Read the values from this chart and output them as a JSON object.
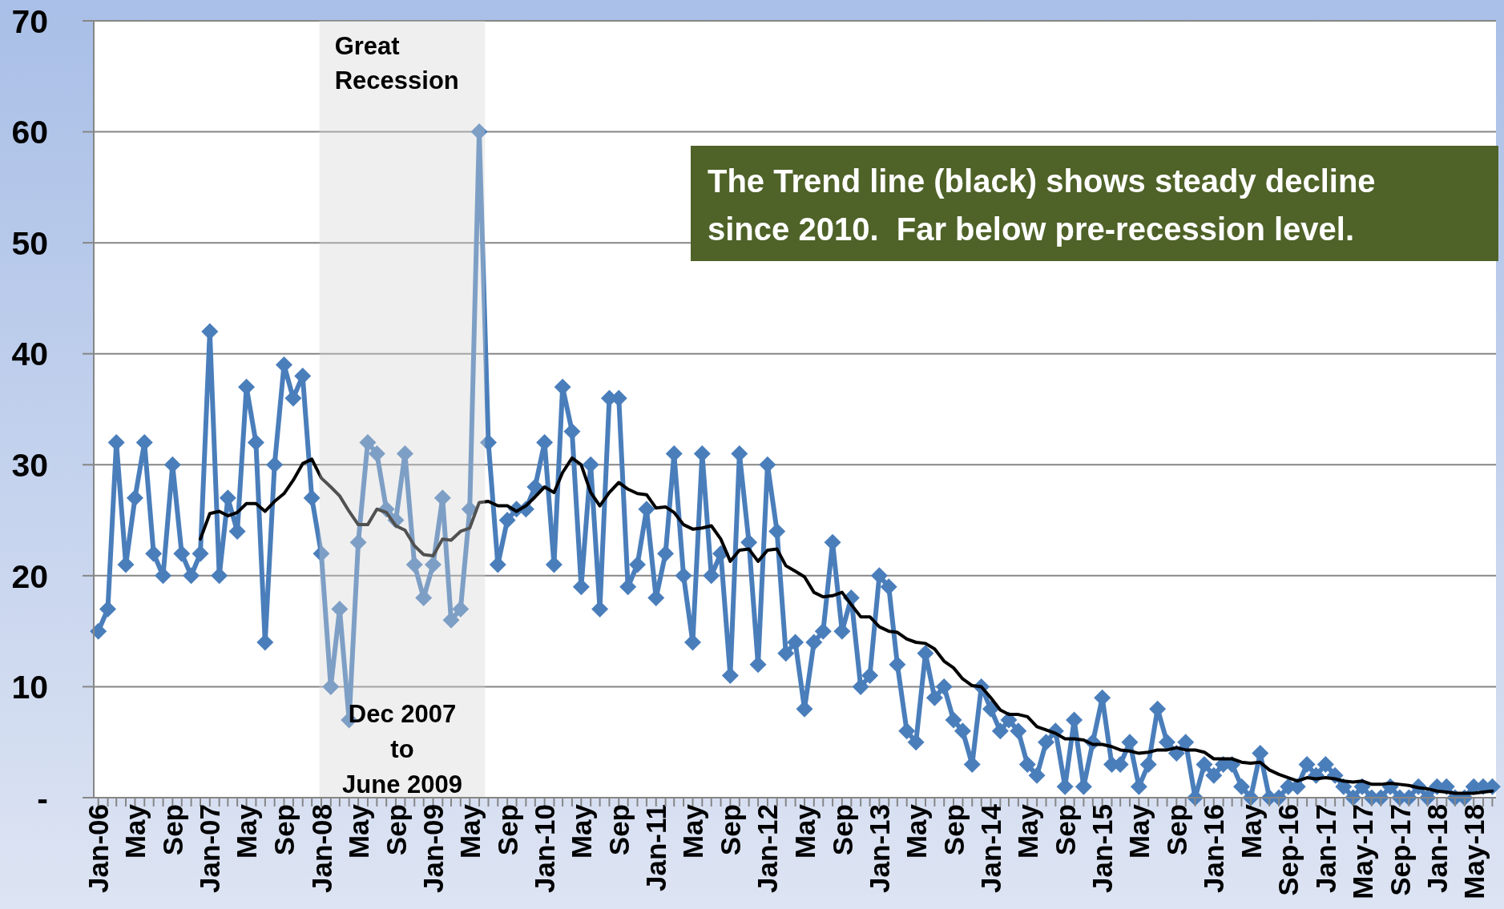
{
  "chart_data": {
    "type": "line",
    "x": [
      "2006-01",
      "2006-02",
      "2006-03",
      "2006-04",
      "2006-05",
      "2006-06",
      "2006-07",
      "2006-08",
      "2006-09",
      "2006-10",
      "2006-11",
      "2006-12",
      "2007-01",
      "2007-02",
      "2007-03",
      "2007-04",
      "2007-05",
      "2007-06",
      "2007-07",
      "2007-08",
      "2007-09",
      "2007-10",
      "2007-11",
      "2007-12",
      "2008-01",
      "2008-02",
      "2008-03",
      "2008-04",
      "2008-05",
      "2008-06",
      "2008-07",
      "2008-08",
      "2008-09",
      "2008-10",
      "2008-11",
      "2008-12",
      "2009-01",
      "2009-02",
      "2009-03",
      "2009-04",
      "2009-05",
      "2009-06",
      "2009-07",
      "2009-08",
      "2009-09",
      "2009-10",
      "2009-11",
      "2009-12",
      "2010-01",
      "2010-02",
      "2010-03",
      "2010-04",
      "2010-05",
      "2010-06",
      "2010-07",
      "2010-08",
      "2010-09",
      "2010-10",
      "2010-11",
      "2010-12",
      "2011-01",
      "2011-02",
      "2011-03",
      "2011-04",
      "2011-05",
      "2011-06",
      "2011-07",
      "2011-08",
      "2011-09",
      "2011-10",
      "2011-11",
      "2011-12",
      "2012-01",
      "2012-02",
      "2012-03",
      "2012-04",
      "2012-05",
      "2012-06",
      "2012-07",
      "2012-08",
      "2012-09",
      "2012-10",
      "2012-11",
      "2012-12",
      "2013-01",
      "2013-02",
      "2013-03",
      "2013-04",
      "2013-05",
      "2013-06",
      "2013-07",
      "2013-08",
      "2013-09",
      "2013-10",
      "2013-11",
      "2013-12",
      "2014-01",
      "2014-02",
      "2014-03",
      "2014-04",
      "2014-05",
      "2014-06",
      "2014-07",
      "2014-08",
      "2014-09",
      "2014-10",
      "2014-11",
      "2014-12",
      "2015-01",
      "2015-02",
      "2015-03",
      "2015-04",
      "2015-05",
      "2015-06",
      "2015-07",
      "2015-08",
      "2015-09",
      "2015-10",
      "2015-11",
      "2015-12",
      "2016-01",
      "2016-02",
      "2016-03",
      "2016-04",
      "2016-05",
      "2016-06",
      "2016-07",
      "2016-08",
      "2016-09",
      "2016-10",
      "2016-11",
      "2016-12",
      "2017-01",
      "2017-02",
      "2017-03",
      "2017-04",
      "2017-05",
      "2017-06",
      "2017-07",
      "2017-08",
      "2017-09",
      "2017-10",
      "2017-11",
      "2017-12",
      "2018-01",
      "2018-02",
      "2018-03",
      "2018-04",
      "2018-05",
      "2018-06",
      "2018-07"
    ],
    "xlim": [
      "2005-12-17",
      "2018-07-13"
    ],
    "xticks": [
      {
        "value": "2006-01",
        "label": "Jan-06"
      },
      {
        "value": "2006-02",
        "label": null
      },
      {
        "value": "2006-03",
        "label": null
      },
      {
        "value": "2006-04",
        "label": null
      },
      {
        "value": "2006-05",
        "label": "May"
      },
      {
        "value": "2006-06",
        "label": null
      },
      {
        "value": "2006-07",
        "label": null
      },
      {
        "value": "2006-08",
        "label": null
      },
      {
        "value": "2006-09",
        "label": "Sep"
      },
      {
        "value": "2006-10",
        "label": null
      },
      {
        "value": "2006-11",
        "label": null
      },
      {
        "value": "2006-12",
        "label": null
      },
      {
        "value": "2007-01",
        "label": "Jan-07"
      },
      {
        "value": "2007-02",
        "label": null
      },
      {
        "value": "2007-03",
        "label": null
      },
      {
        "value": "2007-04",
        "label": null
      },
      {
        "value": "2007-05",
        "label": "May"
      },
      {
        "value": "2007-06",
        "label": null
      },
      {
        "value": "2007-07",
        "label": null
      },
      {
        "value": "2007-08",
        "label": null
      },
      {
        "value": "2007-09",
        "label": "Sep"
      },
      {
        "value": "2007-10",
        "label": null
      },
      {
        "value": "2007-11",
        "label": null
      },
      {
        "value": "2007-12",
        "label": null
      },
      {
        "value": "2008-01",
        "label": "Jan-08"
      },
      {
        "value": "2008-02",
        "label": null
      },
      {
        "value": "2008-03",
        "label": null
      },
      {
        "value": "2008-04",
        "label": null
      },
      {
        "value": "2008-05",
        "label": "May"
      },
      {
        "value": "2008-06",
        "label": null
      },
      {
        "value": "2008-07",
        "label": null
      },
      {
        "value": "2008-08",
        "label": null
      },
      {
        "value": "2008-09",
        "label": "Sep"
      },
      {
        "value": "2008-10",
        "label": null
      },
      {
        "value": "2008-11",
        "label": null
      },
      {
        "value": "2008-12",
        "label": null
      },
      {
        "value": "2009-01",
        "label": "Jan-09"
      },
      {
        "value": "2009-02",
        "label": null
      },
      {
        "value": "2009-03",
        "label": null
      },
      {
        "value": "2009-04",
        "label": null
      },
      {
        "value": "2009-05",
        "label": "May"
      },
      {
        "value": "2009-06",
        "label": null
      },
      {
        "value": "2009-07",
        "label": null
      },
      {
        "value": "2009-08",
        "label": null
      },
      {
        "value": "2009-09",
        "label": "Sep"
      },
      {
        "value": "2009-10",
        "label": null
      },
      {
        "value": "2009-11",
        "label": null
      },
      {
        "value": "2009-12",
        "label": null
      },
      {
        "value": "2010-01",
        "label": "Jan-10"
      },
      {
        "value": "2010-02",
        "label": null
      },
      {
        "value": "2010-03",
        "label": null
      },
      {
        "value": "2010-04",
        "label": null
      },
      {
        "value": "2010-05",
        "label": "May"
      },
      {
        "value": "2010-06",
        "label": null
      },
      {
        "value": "2010-07",
        "label": null
      },
      {
        "value": "2010-08",
        "label": null
      },
      {
        "value": "2010-09",
        "label": "Sep"
      },
      {
        "value": "2010-10",
        "label": null
      },
      {
        "value": "2010-11",
        "label": null
      },
      {
        "value": "2010-12",
        "label": null
      },
      {
        "value": "2011-01",
        "label": "Jan-11"
      },
      {
        "value": "2011-02",
        "label": null
      },
      {
        "value": "2011-03",
        "label": null
      },
      {
        "value": "2011-04",
        "label": null
      },
      {
        "value": "2011-05",
        "label": "May"
      },
      {
        "value": "2011-06",
        "label": null
      },
      {
        "value": "2011-07",
        "label": null
      },
      {
        "value": "2011-08",
        "label": null
      },
      {
        "value": "2011-09",
        "label": "Sep"
      },
      {
        "value": "2011-10",
        "label": null
      },
      {
        "value": "2011-11",
        "label": null
      },
      {
        "value": "2011-12",
        "label": null
      },
      {
        "value": "2012-01",
        "label": "Jan-12"
      },
      {
        "value": "2012-02",
        "label": null
      },
      {
        "value": "2012-03",
        "label": null
      },
      {
        "value": "2012-04",
        "label": null
      },
      {
        "value": "2012-05",
        "label": "May"
      },
      {
        "value": "2012-06",
        "label": null
      },
      {
        "value": "2012-07",
        "label": null
      },
      {
        "value": "2012-08",
        "label": null
      },
      {
        "value": "2012-09",
        "label": "Sep"
      },
      {
        "value": "2012-10",
        "label": null
      },
      {
        "value": "2012-11",
        "label": null
      },
      {
        "value": "2012-12",
        "label": null
      },
      {
        "value": "2013-01",
        "label": "Jan-13"
      },
      {
        "value": "2013-02",
        "label": null
      },
      {
        "value": "2013-03",
        "label": null
      },
      {
        "value": "2013-04",
        "label": null
      },
      {
        "value": "2013-05",
        "label": "May"
      },
      {
        "value": "2013-06",
        "label": null
      },
      {
        "value": "2013-07",
        "label": null
      },
      {
        "value": "2013-08",
        "label": null
      },
      {
        "value": "2013-09",
        "label": "Sep"
      },
      {
        "value": "2013-10",
        "label": null
      },
      {
        "value": "2013-11",
        "label": null
      },
      {
        "value": "2013-12",
        "label": null
      },
      {
        "value": "2014-01",
        "label": "Jan-14"
      },
      {
        "value": "2014-02",
        "label": null
      },
      {
        "value": "2014-03",
        "label": null
      },
      {
        "value": "2014-04",
        "label": null
      },
      {
        "value": "2014-05",
        "label": "May"
      },
      {
        "value": "2014-06",
        "label": null
      },
      {
        "value": "2014-07",
        "label": null
      },
      {
        "value": "2014-08",
        "label": null
      },
      {
        "value": "2014-09",
        "label": "Sep"
      },
      {
        "value": "2014-10",
        "label": null
      },
      {
        "value": "2014-11",
        "label": null
      },
      {
        "value": "2014-12",
        "label": null
      },
      {
        "value": "2015-01",
        "label": "Jan-15"
      },
      {
        "value": "2015-02",
        "label": null
      },
      {
        "value": "2015-03",
        "label": null
      },
      {
        "value": "2015-04",
        "label": null
      },
      {
        "value": "2015-05",
        "label": "May"
      },
      {
        "value": "2015-06",
        "label": null
      },
      {
        "value": "2015-07",
        "label": null
      },
      {
        "value": "2015-08",
        "label": null
      },
      {
        "value": "2015-09",
        "label": "Sep"
      },
      {
        "value": "2015-10",
        "label": null
      },
      {
        "value": "2015-11",
        "label": null
      },
      {
        "value": "2015-12",
        "label": null
      },
      {
        "value": "2016-01",
        "label": "Jan-16"
      },
      {
        "value": "2016-02",
        "label": null
      },
      {
        "value": "2016-03",
        "label": null
      },
      {
        "value": "2016-04",
        "label": null
      },
      {
        "value": "2016-05",
        "label": "May"
      },
      {
        "value": "2016-06",
        "label": null
      },
      {
        "value": "2016-07",
        "label": null
      },
      {
        "value": "2016-08",
        "label": null
      },
      {
        "value": "2016-09",
        "label": "Sep-16"
      },
      {
        "value": "2016-10",
        "label": null
      },
      {
        "value": "2016-11",
        "label": null
      },
      {
        "value": "2016-12",
        "label": null
      },
      {
        "value": "2017-01",
        "label": "Jan-17"
      },
      {
        "value": "2017-02",
        "label": null
      },
      {
        "value": "2017-03",
        "label": null
      },
      {
        "value": "2017-04",
        "label": null
      },
      {
        "value": "2017-05",
        "label": "May-17"
      },
      {
        "value": "2017-06",
        "label": null
      },
      {
        "value": "2017-07",
        "label": null
      },
      {
        "value": "2017-08",
        "label": null
      },
      {
        "value": "2017-09",
        "label": "Sep-17"
      },
      {
        "value": "2017-10",
        "label": null
      },
      {
        "value": "2017-11",
        "label": null
      },
      {
        "value": "2017-12",
        "label": null
      },
      {
        "value": "2018-01",
        "label": "Jan-18"
      },
      {
        "value": "2018-02",
        "label": null
      },
      {
        "value": "2018-03",
        "label": null
      },
      {
        "value": "2018-04",
        "label": null
      },
      {
        "value": "2018-05",
        "label": "May-18"
      },
      {
        "value": "2018-06",
        "label": null
      },
      {
        "value": "2018-07",
        "label": null
      }
    ],
    "ylim": [
      0,
      70
    ],
    "yticks": [
      {
        "value": 0,
        "label": "-"
      },
      10,
      20,
      30,
      40,
      50,
      60,
      70
    ],
    "grid": "y",
    "series": [
      {
        "color": "#4a7ebb",
        "marker": "diamond",
        "values": [
          15,
          17,
          32,
          21,
          27,
          32,
          22,
          20,
          30,
          22,
          20,
          22,
          42,
          20,
          27,
          24,
          37,
          32,
          14,
          30,
          39,
          36,
          38,
          27,
          22,
          10,
          17,
          7,
          23,
          32,
          31,
          26,
          25,
          31,
          21,
          18,
          21,
          27,
          16,
          17,
          26,
          60,
          32,
          21,
          25,
          26,
          26,
          28,
          32,
          21,
          37,
          33,
          19,
          30,
          17,
          36,
          36,
          19,
          21,
          26,
          18,
          22,
          31,
          20,
          14,
          31,
          20,
          22,
          11,
          31,
          23,
          12,
          30,
          24,
          13,
          14,
          8,
          14,
          15,
          23,
          15,
          18,
          10,
          11,
          20,
          19,
          12,
          6,
          5,
          13,
          9,
          10,
          7,
          6,
          3,
          10,
          8,
          6,
          7,
          6,
          3,
          2,
          5,
          6,
          1,
          7,
          1,
          5,
          9,
          3,
          3,
          5,
          1,
          3,
          8,
          5,
          4,
          5,
          0,
          3,
          2,
          3,
          3,
          1,
          0,
          4,
          0,
          0,
          1,
          1,
          3,
          2,
          3,
          2,
          1,
          0,
          1,
          0,
          0,
          1,
          0,
          0,
          1,
          0,
          1,
          1,
          0,
          0,
          1,
          1,
          1
        ]
      },
      {
        "color": "#000000",
        "marker": "none",
        "values": [
          null,
          null,
          null,
          null,
          null,
          null,
          null,
          null,
          null,
          null,
          null,
          23.3,
          25.6,
          25.8,
          25.4,
          25.7,
          26.5,
          26.5,
          25.8,
          26.7,
          27.4,
          28.6,
          30.1,
          30.5,
          28.8,
          28.0,
          27.2,
          25.8,
          24.6,
          24.6,
          26.0,
          25.7,
          24.5,
          24.1,
          22.7,
          21.9,
          21.8,
          23.3,
          23.2,
          24.0,
          24.3,
          26.6,
          26.7,
          26.3,
          26.3,
          25.8,
          26.3,
          27.1,
          28.0,
          27.5,
          29.3,
          30.6,
          30.0,
          27.5,
          26.3,
          27.5,
          28.4,
          27.8,
          27.4,
          27.3,
          26.1,
          26.2,
          25.7,
          24.6,
          24.2,
          24.3,
          24.5,
          23.3,
          21.3,
          22.3,
          22.4,
          21.3,
          22.3,
          22.4,
          20.9,
          20.4,
          19.9,
          18.5,
          18.1,
          18.2,
          18.5,
          17.4,
          16.3,
          16.3,
          15.4,
          15.0,
          14.9,
          14.3,
          14.0,
          13.9,
          13.4,
          12.3,
          11.7,
          10.7,
          10.1,
          10.0,
          9.0,
          7.9,
          7.5,
          7.5,
          7.3,
          6.4,
          6.1,
          5.8,
          5.3,
          5.3,
          5.2,
          4.8,
          4.8,
          4.6,
          4.3,
          4.2,
          4.0,
          4.1,
          4.3,
          4.3,
          4.5,
          4.3,
          4.3,
          4.1,
          3.5,
          3.5,
          3.5,
          3.2,
          3.1,
          3.2,
          2.5,
          2.1,
          1.8,
          1.5,
          1.8,
          1.7,
          1.8,
          1.7,
          1.5,
          1.4,
          1.5,
          1.2,
          1.2,
          1.3,
          1.2,
          1.1,
          0.9,
          0.8,
          0.6,
          0.5,
          0.4,
          0.4,
          0.4,
          0.5,
          0.6
        ]
      }
    ],
    "bands": [
      {
        "axis": "x",
        "from": "2007-12-26",
        "to": "2009-06-20",
        "label": "Great\nRecession",
        "color": "#efefef"
      }
    ],
    "annotations": [
      "Dec 2007\nto\nJune 2009",
      "The Trend line (black) shows steady decline\nsince 2010.  Far below pre-recession level."
    ]
  }
}
